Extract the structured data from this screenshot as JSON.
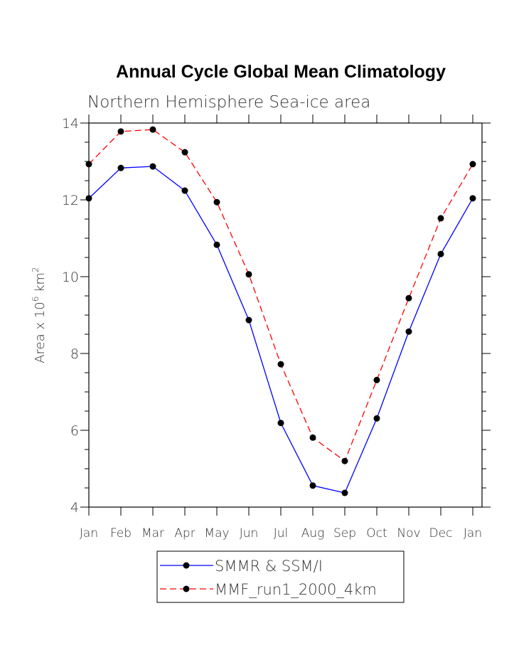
{
  "chart_data": {
    "type": "line",
    "title": "Annual Cycle Global Mean Climatology",
    "subtitle": "Northern Hemisphere Sea-ice area",
    "ylabel": "Area x 10^6 km^2",
    "ylabel_parts": {
      "base": "Area x 10",
      "exp1": "6",
      "unit": " km",
      "exp2": "2"
    },
    "xlabel": "",
    "categories": [
      "Jan",
      "Feb",
      "Mar",
      "Apr",
      "May",
      "Jun",
      "Jul",
      "Aug",
      "Sep",
      "Oct",
      "Nov",
      "Dec",
      "Jan"
    ],
    "ylim": [
      4,
      14
    ],
    "yticks": [
      4,
      6,
      8,
      10,
      12,
      14
    ],
    "grid": false,
    "legend_placement": "bottom",
    "series": [
      {
        "name": "SMMR & SSM/I",
        "color": "#0000ff",
        "dash": "solid",
        "values": [
          12.04,
          12.83,
          12.87,
          12.24,
          10.83,
          8.87,
          6.19,
          4.56,
          4.37,
          6.31,
          8.57,
          10.59,
          12.04
        ]
      },
      {
        "name": "MMF_run1_2000_4km",
        "color": "#ff0000",
        "dash": "dashed",
        "values": [
          12.93,
          13.78,
          13.83,
          13.24,
          11.94,
          10.06,
          7.72,
          5.81,
          5.2,
          7.31,
          9.44,
          11.52,
          12.93
        ]
      }
    ]
  }
}
